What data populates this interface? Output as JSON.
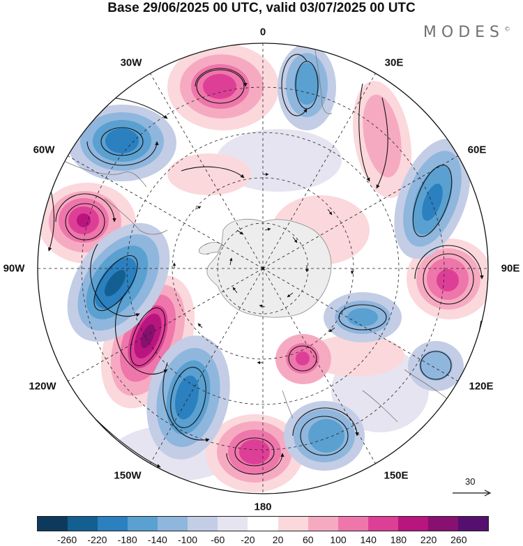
{
  "title": "Base 29/06/2025 00 UTC, valid 03/07/2025 00 UTC",
  "brand": "MODES",
  "brand_mark": "©",
  "longitude_labels": {
    "lon_0": "0",
    "lon_30e": "30E",
    "lon_60e": "60E",
    "lon_90e": "90E",
    "lon_120e": "120E",
    "lon_150e": "150E",
    "lon_180": "180",
    "lon_150w": "150W",
    "lon_120w": "120W",
    "lon_90w": "90W",
    "lon_60w": "60W",
    "lon_30w": "30W"
  },
  "reference_vector": {
    "value": "30"
  },
  "colorbar": {
    "colors": [
      "#0d3a5c",
      "#145f92",
      "#2b80bf",
      "#5aa0d0",
      "#8fb6dd",
      "#c3cde6",
      "#e6e4f0",
      "#ffffff",
      "#fbd8dc",
      "#f6aac1",
      "#ee76ab",
      "#de3f96",
      "#b8157f",
      "#871070",
      "#55106f"
    ],
    "tick_labels": [
      "-260",
      "-220",
      "-180",
      "-140",
      "-100",
      "-60",
      "-20",
      "20",
      "60",
      "100",
      "140",
      "180",
      "220",
      "260"
    ]
  }
}
